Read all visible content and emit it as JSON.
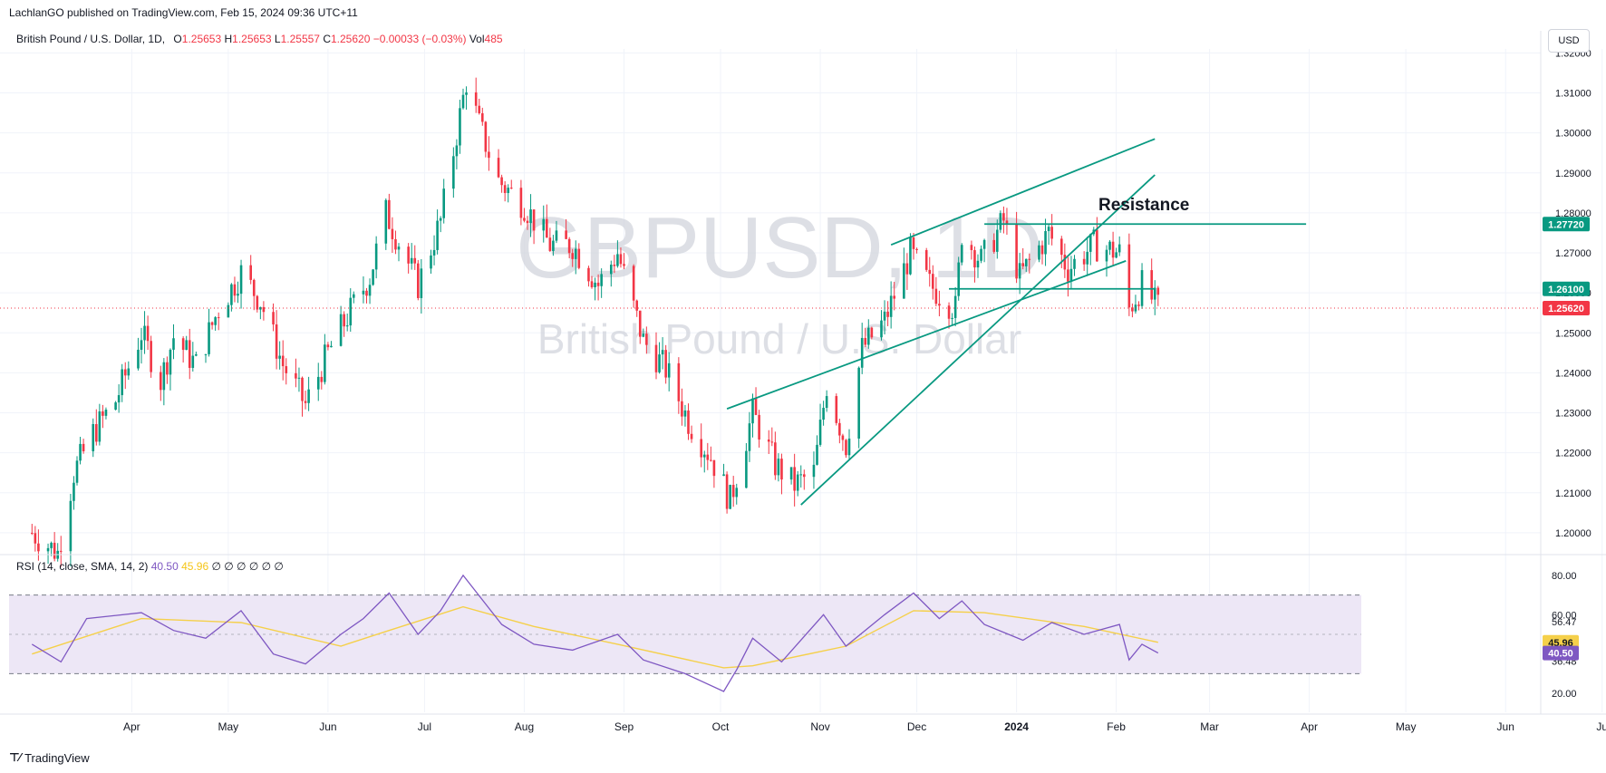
{
  "header": {
    "publisher": "LachlanGO published on TradingView.com, Feb 15, 2024 09:36 UTC+11"
  },
  "legend": {
    "symbol": "British Pound / U.S. Dollar, 1D,",
    "o_label": "O",
    "o_value": "1.25653",
    "h_label": "H",
    "h_value": "1.25653",
    "l_label": "L",
    "l_value": "1.25557",
    "c_label": "C",
    "c_value": "1.25620",
    "change": "−0.00033 (−0.03%)",
    "vol_label": "Vol",
    "vol_value": "485"
  },
  "currency_button": "USD",
  "watermark": {
    "ticker": "GBPUSD, 1D",
    "name": "British Pound / U.S. Dollar"
  },
  "annotation": {
    "resistance": "Resistance"
  },
  "rsi_legend": {
    "name": "RSI (14, close, SMA, 14, 2)",
    "rsi_value": "40.50",
    "sma_value": "45.96",
    "extras": "∅ ∅ ∅ ∅ ∅ ∅"
  },
  "brand": {
    "name": "TradingView"
  },
  "colors": {
    "up": "#089981",
    "down": "#f23645",
    "line": "#089981",
    "rsi": "#7e57c2",
    "rsi_sma": "#f5d04a",
    "band": "#ede7f6"
  },
  "chart_data": {
    "type": "candlestick",
    "price_axis": {
      "ylim": [
        1.195,
        1.321
      ],
      "ticks": [
        "1.32000",
        "1.31000",
        "1.30000",
        "1.29000",
        "1.28000",
        "1.27000",
        "1.26000",
        "1.25000",
        "1.24000",
        "1.23000",
        "1.22000",
        "1.21000",
        "1.20000"
      ]
    },
    "time_axis": {
      "labels": [
        "Apr",
        "May",
        "Jun",
        "Jul",
        "Aug",
        "Sep",
        "Oct",
        "Nov",
        "Dec",
        "2024",
        "Feb",
        "Mar",
        "Apr",
        "May",
        "Jun",
        "Ju"
      ]
    },
    "price_labels": [
      {
        "value": 1.2772,
        "text": "1.27720",
        "color": "#089981"
      },
      {
        "value": 1.261,
        "text": "1.26100",
        "color": "#089981"
      },
      {
        "value": 1.2562,
        "text": "1.25620",
        "color": "#f23645"
      }
    ],
    "close_path": [
      {
        "d": "2023-03-01",
        "c": 1.2
      },
      {
        "d": "2023-03-09",
        "c": 1.195
      },
      {
        "d": "2023-03-14",
        "c": 1.215
      },
      {
        "d": "2023-03-20",
        "c": 1.225
      },
      {
        "d": "2023-03-27",
        "c": 1.233
      },
      {
        "d": "2023-04-04",
        "c": 1.25
      },
      {
        "d": "2023-04-10",
        "c": 1.238
      },
      {
        "d": "2023-04-14",
        "c": 1.249
      },
      {
        "d": "2023-04-21",
        "c": 1.242
      },
      {
        "d": "2023-04-28",
        "c": 1.256
      },
      {
        "d": "2023-05-05",
        "c": 1.265
      },
      {
        "d": "2023-05-11",
        "c": 1.258
      },
      {
        "d": "2023-05-18",
        "c": 1.242
      },
      {
        "d": "2023-05-25",
        "c": 1.232
      },
      {
        "d": "2023-06-01",
        "c": 1.245
      },
      {
        "d": "2023-06-09",
        "c": 1.257
      },
      {
        "d": "2023-06-14",
        "c": 1.264
      },
      {
        "d": "2023-06-19",
        "c": 1.28
      },
      {
        "d": "2023-06-29",
        "c": 1.262
      },
      {
        "d": "2023-07-06",
        "c": 1.278
      },
      {
        "d": "2023-07-14",
        "c": 1.313
      },
      {
        "d": "2023-07-18",
        "c": 1.302
      },
      {
        "d": "2023-07-24",
        "c": 1.288
      },
      {
        "d": "2023-08-01",
        "c": 1.282
      },
      {
        "d": "2023-08-09",
        "c": 1.272
      },
      {
        "d": "2023-08-16",
        "c": 1.272
      },
      {
        "d": "2023-08-24",
        "c": 1.262
      },
      {
        "d": "2023-08-30",
        "c": 1.27
      },
      {
        "d": "2023-09-07",
        "c": 1.248
      },
      {
        "d": "2023-09-14",
        "c": 1.241
      },
      {
        "d": "2023-09-21",
        "c": 1.228
      },
      {
        "d": "2023-09-28",
        "c": 1.219
      },
      {
        "d": "2023-10-04",
        "c": 1.208
      },
      {
        "d": "2023-10-11",
        "c": 1.23
      },
      {
        "d": "2023-10-18",
        "c": 1.217
      },
      {
        "d": "2023-10-24",
        "c": 1.212
      },
      {
        "d": "2023-10-30",
        "c": 1.215
      },
      {
        "d": "2023-11-03",
        "c": 1.237
      },
      {
        "d": "2023-11-09",
        "c": 1.222
      },
      {
        "d": "2023-11-14",
        "c": 1.246
      },
      {
        "d": "2023-11-21",
        "c": 1.253
      },
      {
        "d": "2023-11-29",
        "c": 1.27
      },
      {
        "d": "2023-12-05",
        "c": 1.262
      },
      {
        "d": "2023-12-13",
        "c": 1.256
      },
      {
        "d": "2023-12-15",
        "c": 1.275
      },
      {
        "d": "2023-12-21",
        "c": 1.268
      },
      {
        "d": "2023-12-28",
        "c": 1.278
      },
      {
        "d": "2024-01-02",
        "c": 1.264
      },
      {
        "d": "2024-01-11",
        "c": 1.275
      },
      {
        "d": "2024-01-17",
        "c": 1.266
      },
      {
        "d": "2024-01-25",
        "c": 1.272
      },
      {
        "d": "2024-02-02",
        "c": 1.27
      },
      {
        "d": "2024-02-05",
        "c": 1.256
      },
      {
        "d": "2024-02-09",
        "c": 1.262
      },
      {
        "d": "2024-02-14",
        "c": 1.2562
      }
    ],
    "trendlines": [
      {
        "d1": "2023-10-03",
        "p1": 1.231,
        "d2": "2024-02-04",
        "p2": 1.268
      },
      {
        "d1": "2023-11-23",
        "p1": 1.272,
        "d2": "2024-02-13",
        "p2": 1.2985
      },
      {
        "d1": "2023-10-26",
        "p1": 1.207,
        "d2": "2024-02-13",
        "p2": 1.2895
      },
      {
        "d1": "2023-12-11",
        "p1": 1.261,
        "d2": "2024-02-13",
        "p2": 1.261
      },
      {
        "d1": "2023-12-22",
        "p1": 1.2772,
        "d2": "2024-03-31",
        "p2": 1.2772
      }
    ],
    "rsi": {
      "ticks": [
        "80.00",
        "60.00",
        "56.47",
        "36.48",
        "20.00"
      ],
      "bands": [
        70,
        30
      ],
      "path": [
        {
          "d": "2023-03-01",
          "v": 45
        },
        {
          "d": "2023-03-10",
          "v": 36
        },
        {
          "d": "2023-03-18",
          "v": 58
        },
        {
          "d": "2023-04-04",
          "v": 61
        },
        {
          "d": "2023-04-14",
          "v": 52
        },
        {
          "d": "2023-04-24",
          "v": 48
        },
        {
          "d": "2023-05-05",
          "v": 62
        },
        {
          "d": "2023-05-15",
          "v": 40
        },
        {
          "d": "2023-05-25",
          "v": 35
        },
        {
          "d": "2023-06-05",
          "v": 50
        },
        {
          "d": "2023-06-12",
          "v": 58
        },
        {
          "d": "2023-06-20",
          "v": 71
        },
        {
          "d": "2023-06-29",
          "v": 50
        },
        {
          "d": "2023-07-06",
          "v": 62
        },
        {
          "d": "2023-07-13",
          "v": 80
        },
        {
          "d": "2023-07-25",
          "v": 55
        },
        {
          "d": "2023-08-04",
          "v": 45
        },
        {
          "d": "2023-08-16",
          "v": 42
        },
        {
          "d": "2023-08-30",
          "v": 50
        },
        {
          "d": "2023-09-07",
          "v": 37
        },
        {
          "d": "2023-09-20",
          "v": 30
        },
        {
          "d": "2023-10-02",
          "v": 21
        },
        {
          "d": "2023-10-06",
          "v": 32
        },
        {
          "d": "2023-10-11",
          "v": 48
        },
        {
          "d": "2023-10-20",
          "v": 36
        },
        {
          "d": "2023-11-02",
          "v": 60
        },
        {
          "d": "2023-11-09",
          "v": 44
        },
        {
          "d": "2023-11-21",
          "v": 60
        },
        {
          "d": "2023-11-30",
          "v": 71
        },
        {
          "d": "2023-12-08",
          "v": 58
        },
        {
          "d": "2023-12-15",
          "v": 67
        },
        {
          "d": "2023-12-22",
          "v": 55
        },
        {
          "d": "2024-01-03",
          "v": 47
        },
        {
          "d": "2024-01-12",
          "v": 56
        },
        {
          "d": "2024-01-22",
          "v": 50
        },
        {
          "d": "2024-02-02",
          "v": 55
        },
        {
          "d": "2024-02-05",
          "v": 37
        },
        {
          "d": "2024-02-09",
          "v": 45
        },
        {
          "d": "2024-02-14",
          "v": 40.5
        }
      ],
      "sma": [
        {
          "d": "2023-03-01",
          "v": 40
        },
        {
          "d": "2023-04-04",
          "v": 58
        },
        {
          "d": "2023-05-05",
          "v": 56
        },
        {
          "d": "2023-06-05",
          "v": 44
        },
        {
          "d": "2023-06-20",
          "v": 52
        },
        {
          "d": "2023-07-13",
          "v": 64
        },
        {
          "d": "2023-08-04",
          "v": 54
        },
        {
          "d": "2023-08-30",
          "v": 45
        },
        {
          "d": "2023-10-02",
          "v": 33
        },
        {
          "d": "2023-10-11",
          "v": 34
        },
        {
          "d": "2023-11-09",
          "v": 44
        },
        {
          "d": "2023-11-30",
          "v": 62
        },
        {
          "d": "2023-12-22",
          "v": 61
        },
        {
          "d": "2024-01-22",
          "v": 54
        },
        {
          "d": "2024-02-14",
          "v": 45.96
        }
      ]
    }
  }
}
